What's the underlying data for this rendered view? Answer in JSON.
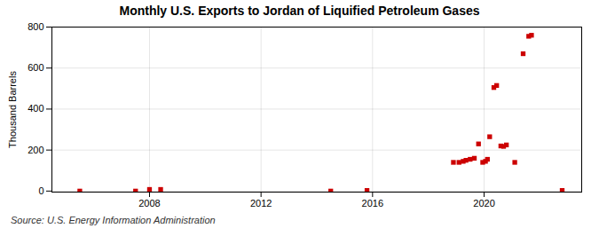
{
  "chart_data": {
    "type": "scatter",
    "title": "Monthly U.S. Exports to Jordan of Liquified Petroleum Gases",
    "ylabel": "Thousand Barrels",
    "annotations": [
      "Source: U.S. Energy Information Administration"
    ],
    "color": "#cc0000",
    "marker": "square",
    "grid": true,
    "xlim": [
      2004.5,
      2023.5
    ],
    "xticks": [
      2008,
      2012,
      2016,
      2020
    ],
    "ylim": [
      -5,
      800
    ],
    "yticks": [
      0,
      200,
      400,
      600,
      800
    ],
    "x": [
      2005.5,
      2007.5,
      2008.0,
      2008.4,
      2014.5,
      2015.8,
      2018.9,
      2019.1,
      2019.25,
      2019.35,
      2019.5,
      2019.65,
      2019.8,
      2019.95,
      2020.05,
      2020.12,
      2020.2,
      2020.35,
      2020.45,
      2020.6,
      2020.7,
      2020.8,
      2021.1,
      2021.4,
      2021.6,
      2021.7,
      2022.8
    ],
    "values": [
      0,
      0,
      8,
      8,
      0,
      3,
      140,
      140,
      145,
      150,
      155,
      160,
      230,
      140,
      145,
      155,
      265,
      505,
      515,
      220,
      218,
      225,
      140,
      670,
      755,
      760,
      3
    ]
  }
}
